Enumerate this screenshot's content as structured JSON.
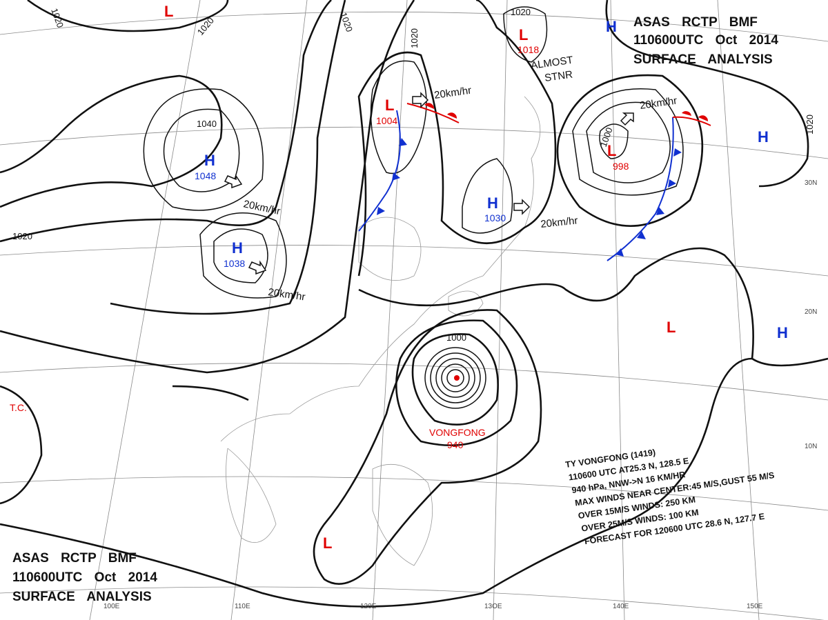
{
  "header_top": {
    "lines": [
      "ASAS RCTP BMF",
      "110600UTC Oct 2014",
      "SURFACE ANALYSIS"
    ]
  },
  "header_bottom": {
    "lines": [
      "ASAS RCTP BMF",
      "110600UTC Oct 2014",
      "SURFACE ANALYSIS"
    ]
  },
  "pressure_centers": [
    {
      "symbol": "H",
      "pressure": 1048
    },
    {
      "symbol": "H",
      "pressure": 1038
    },
    {
      "symbol": "H",
      "pressure": 1030
    },
    {
      "symbol": "L",
      "pressure": 1004
    },
    {
      "symbol": "L",
      "pressure": 998
    },
    {
      "symbol": "L",
      "pressure": 1018
    },
    {
      "symbol": "H"
    },
    {
      "symbol": "H"
    },
    {
      "symbol": "H"
    },
    {
      "symbol": "L"
    },
    {
      "symbol": "L"
    },
    {
      "symbol": "L"
    }
  ],
  "typhoon": {
    "name": "VONGFONG",
    "pressure": 940
  },
  "tc_label": "T.C.",
  "isobar_labels": [
    1020,
    1020,
    1020,
    1020,
    1020,
    1020,
    1020,
    1040,
    1000,
    1000
  ],
  "motion_labels": [
    "20km/hr",
    "20km/hr",
    "20km/hr",
    "20km/hr",
    "20km/hr"
  ],
  "stationary_note": {
    "lines": [
      "ALMOST",
      "STNR"
    ]
  },
  "typhoon_info": {
    "lines": [
      "TY VONGFONG (1419)",
      "110600 UTC AT25.3 N, 128.5 E",
      "940 hPa, NNW->N 16 KM/HR",
      "MAX WINDS NEAR CENTER:45 M/S,GUST 55 M/S",
      "OVER 15M/S WINDS: 250 KM",
      "OVER 25M/S WINDS: 100 KM",
      "FORECAST FOR 120600 UTC 28.6 N, 127.7 E"
    ]
  },
  "longitudes": [
    "100E",
    "110E",
    "120E",
    "13OE",
    "140E",
    "150E"
  ],
  "latitudes": [
    "30N",
    "20N",
    "10N"
  ]
}
